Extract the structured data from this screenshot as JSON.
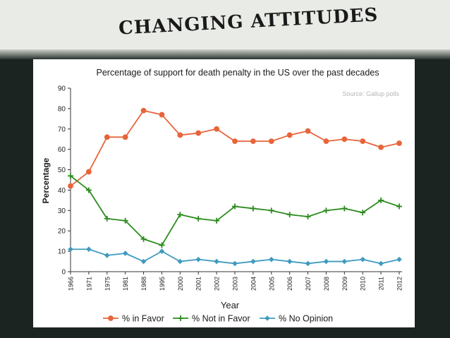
{
  "slide": {
    "title": "CHANGING ATTITUDES"
  },
  "chart_data": {
    "type": "line",
    "title": "Percentage of support for death penalty in the US over the past decades",
    "source": "Source: Gallup polls",
    "xlabel": "Year",
    "ylabel": "Percentage",
    "ylim": [
      0,
      90
    ],
    "yticks": [
      0,
      10,
      20,
      30,
      40,
      50,
      60,
      70,
      80,
      90
    ],
    "grid": false,
    "legend": "bottom",
    "categories": [
      "1966",
      "1971",
      "1975",
      "1981",
      "1988",
      "1995",
      "2000",
      "2001",
      "2002",
      "2003",
      "2004",
      "2005",
      "2006",
      "2007",
      "2008",
      "2009",
      "2010",
      "2011",
      "2012"
    ],
    "series": [
      {
        "name": "% in Favor",
        "color": "#e8643a",
        "marker": "circle",
        "values": [
          42,
          49,
          66,
          66,
          79,
          77,
          67,
          68,
          70,
          64,
          64,
          64,
          67,
          69,
          64,
          65,
          64,
          61,
          63
        ]
      },
      {
        "name": "% Not in Favor",
        "color": "#2c8c1e",
        "marker": "plus",
        "values": [
          47,
          40,
          26,
          25,
          16,
          13,
          28,
          26,
          25,
          32,
          31,
          30,
          28,
          27,
          30,
          31,
          29,
          35,
          32
        ]
      },
      {
        "name": "% No Opinion",
        "color": "#3f9bbf",
        "marker": "diamond",
        "values": [
          11,
          11,
          8,
          9,
          5,
          10,
          5,
          6,
          5,
          4,
          5,
          6,
          5,
          4,
          5,
          5,
          6,
          4,
          6
        ]
      }
    ]
  }
}
